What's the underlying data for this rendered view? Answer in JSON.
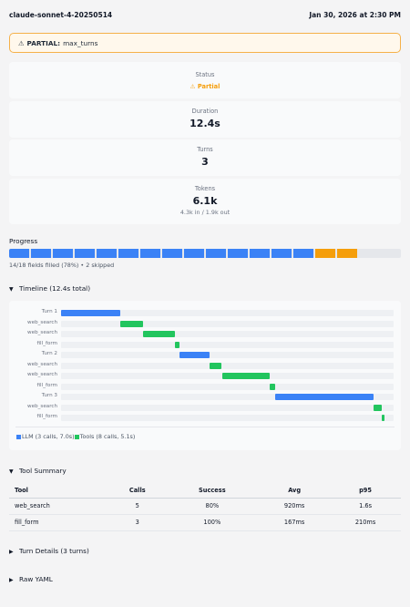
{
  "header": {
    "model": "claude-sonnet-4-20250514",
    "timestamp": "Jan 30, 2026 at 2:30 PM"
  },
  "alert": {
    "icon": "warning-icon",
    "label": "PARTIAL:",
    "reason": "max_turns",
    "color": "#f59e0b"
  },
  "cards": {
    "status": {
      "label": "Status",
      "value": "Partial",
      "icon": "⚠"
    },
    "duration": {
      "label": "Duration",
      "value": "12.4s"
    },
    "turns": {
      "label": "Turns",
      "value": "3"
    },
    "tokens": {
      "label": "Tokens",
      "value": "6.1k",
      "sub": "4.3k in / 1.9k out"
    }
  },
  "progress": {
    "title": "Progress",
    "caption": "14/18 fields filled (78%) • 2 skipped",
    "filled": 14,
    "skipped": 2,
    "total": 18,
    "colors": {
      "filled": "#3b82f6",
      "skipped": "#f59e0b",
      "empty": "#e5e7eb"
    }
  },
  "timeline": {
    "title": "Timeline (12.4s total)",
    "total_s": 12.4,
    "rows": [
      {
        "label": "Turn 1",
        "kind": "llm",
        "start_s": 0.0,
        "dur_s": 2.2
      },
      {
        "label": "web_search",
        "kind": "tool",
        "start_s": 2.2,
        "dur_s": 0.85
      },
      {
        "label": "web_search",
        "kind": "tool",
        "start_s": 3.05,
        "dur_s": 1.2
      },
      {
        "label": "fill_form",
        "kind": "tool",
        "start_s": 4.25,
        "dur_s": 0.17
      },
      {
        "label": "Turn 2",
        "kind": "llm",
        "start_s": 4.42,
        "dur_s": 1.12
      },
      {
        "label": "web_search",
        "kind": "tool",
        "start_s": 5.54,
        "dur_s": 0.45
      },
      {
        "label": "web_search",
        "kind": "tool",
        "start_s": 6.0,
        "dur_s": 1.78
      },
      {
        "label": "fill_form",
        "kind": "tool",
        "start_s": 7.78,
        "dur_s": 0.21
      },
      {
        "label": "Turn 3",
        "kind": "llm",
        "start_s": 7.99,
        "dur_s": 3.66
      },
      {
        "label": "web_search",
        "kind": "tool",
        "start_s": 11.65,
        "dur_s": 0.3
      },
      {
        "label": "fill_form",
        "kind": "tool",
        "start_s": 11.95,
        "dur_s": 0.12
      }
    ],
    "legend": {
      "llm": "LLM (3 calls, 7.0s)",
      "tools": "Tools (8 calls, 5.1s)"
    },
    "colors": {
      "llm": "#3b82f6",
      "tool": "#22c55e"
    }
  },
  "tool_summary": {
    "title": "Tool Summary",
    "columns": [
      "Tool",
      "Calls",
      "Success",
      "Avg",
      "p95"
    ],
    "rows": [
      [
        "web_search",
        "5",
        "80%",
        "920ms",
        "1.6s"
      ],
      [
        "fill_form",
        "3",
        "100%",
        "167ms",
        "210ms"
      ]
    ]
  },
  "sections": {
    "turn_details": "Turn Details (3 turns)",
    "raw_yaml": "Raw YAML"
  }
}
